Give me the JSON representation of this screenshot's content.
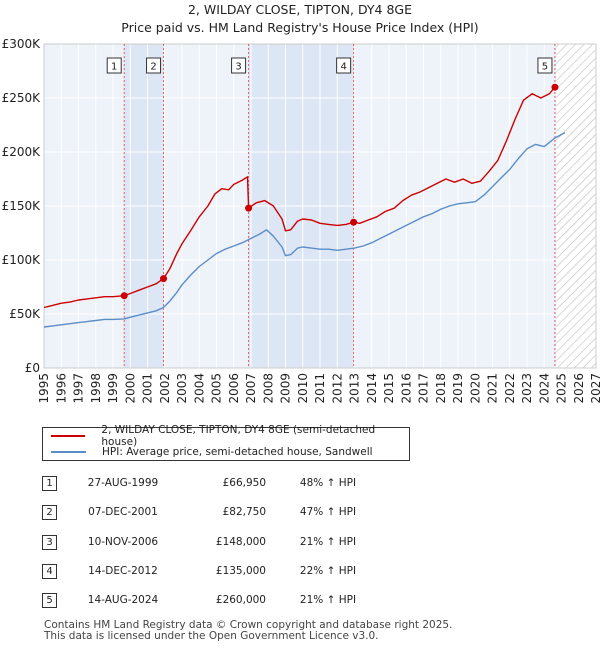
{
  "chart_data": {
    "type": "line",
    "title": "2, WILDAY CLOSE, TIPTON, DY4 8GE",
    "subtitle": "Price paid vs. HM Land Registry's House Price Index (HPI)",
    "xlabel": "",
    "ylabel": "",
    "xlim": [
      1995,
      2027
    ],
    "ylim": [
      0,
      300000
    ],
    "y_ticks": [
      0,
      50000,
      100000,
      150000,
      200000,
      250000,
      300000
    ],
    "y_tick_labels": [
      "£0",
      "£50K",
      "£100K",
      "£150K",
      "£200K",
      "£250K",
      "£300K"
    ],
    "x_ticks": [
      1995,
      1996,
      1997,
      1998,
      1999,
      2000,
      2001,
      2002,
      2003,
      2004,
      2005,
      2006,
      2007,
      2008,
      2009,
      2010,
      2011,
      2012,
      2013,
      2014,
      2015,
      2016,
      2017,
      2018,
      2019,
      2020,
      2021,
      2022,
      2023,
      2024,
      2025,
      2026,
      2027
    ],
    "x_tick_labels": [
      "1995",
      "1996",
      "1997",
      "1998",
      "1999",
      "2000",
      "2001",
      "2002",
      "2003",
      "2004",
      "2005",
      "2006",
      "2007",
      "2008",
      "2009",
      "2010",
      "2011",
      "2012",
      "2013",
      "2014",
      "2015",
      "2016",
      "2017",
      "2018",
      "2019",
      "2020",
      "2021",
      "2022",
      "2023",
      "2024",
      "2025",
      "2026",
      "2027"
    ],
    "grid": true,
    "forecast_start": 2024.7,
    "shaded_periods": [
      [
        1999.65,
        2001.93
      ],
      [
        2006.86,
        2012.95
      ]
    ],
    "series": [
      {
        "name": "2, WILDAY CLOSE, TIPTON, DY4 8GE (semi-detached house)",
        "color": "#cc0000",
        "x": [
          1995.0,
          1995.5,
          1996.0,
          1996.5,
          1997.0,
          1997.5,
          1998.0,
          1998.5,
          1999.0,
          1999.65,
          2000.0,
          2000.5,
          2001.0,
          2001.5,
          2001.93,
          2002.3,
          2002.7,
          2003.0,
          2003.5,
          2004.0,
          2004.5,
          2004.9,
          2005.3,
          2005.7,
          2006.0,
          2006.5,
          2006.8,
          2006.86,
          2007.3,
          2007.8,
          2008.3,
          2008.8,
          2009.0,
          2009.3,
          2009.7,
          2010.0,
          2010.5,
          2011.0,
          2011.5,
          2012.0,
          2012.5,
          2012.95,
          2013.3,
          2013.8,
          2014.3,
          2014.8,
          2015.3,
          2015.8,
          2016.3,
          2016.8,
          2017.3,
          2017.8,
          2018.3,
          2018.8,
          2019.3,
          2019.8,
          2020.3,
          2020.8,
          2021.3,
          2021.8,
          2022.3,
          2022.8,
          2023.3,
          2023.8,
          2024.3,
          2024.62
        ],
        "values": [
          56000,
          58000,
          60000,
          61000,
          63000,
          64000,
          65000,
          66000,
          66000,
          66950,
          69000,
          72000,
          75000,
          78000,
          82750,
          92000,
          106000,
          115000,
          127000,
          140000,
          150000,
          161000,
          166000,
          165000,
          170000,
          174000,
          177000,
          148000,
          153000,
          155000,
          150000,
          138000,
          127000,
          128000,
          136000,
          138000,
          137000,
          134000,
          133000,
          132000,
          133000,
          135000,
          134000,
          137000,
          140000,
          145000,
          148000,
          155000,
          160000,
          163000,
          167000,
          171000,
          175000,
          172000,
          175000,
          171000,
          173000,
          182000,
          192000,
          210000,
          230000,
          248000,
          254000,
          250000,
          254000,
          260000
        ]
      },
      {
        "name": "HPI: Average price, semi-detached house, Sandwell",
        "color": "#5b8dc8",
        "x": [
          1995.0,
          1995.5,
          1996.0,
          1996.5,
          1997.0,
          1997.5,
          1998.0,
          1998.5,
          1999.0,
          1999.65,
          2000.0,
          2000.5,
          2001.0,
          2001.5,
          2001.93,
          2002.3,
          2002.7,
          2003.0,
          2003.5,
          2004.0,
          2004.5,
          2005.0,
          2005.5,
          2006.0,
          2006.5,
          2007.0,
          2007.5,
          2007.9,
          2008.3,
          2008.8,
          2009.0,
          2009.3,
          2009.7,
          2010.0,
          2010.5,
          2011.0,
          2011.5,
          2012.0,
          2012.5,
          2013.0,
          2013.5,
          2014.0,
          2014.5,
          2015.0,
          2015.5,
          2016.0,
          2016.5,
          2017.0,
          2017.5,
          2018.0,
          2018.5,
          2019.0,
          2019.5,
          2020.0,
          2020.5,
          2021.0,
          2021.5,
          2022.0,
          2022.5,
          2023.0,
          2023.5,
          2024.0,
          2024.62,
          2025.2
        ],
        "values": [
          38000,
          39000,
          40000,
          41000,
          42000,
          43000,
          44000,
          45000,
          45000,
          45500,
          47000,
          49000,
          51000,
          53000,
          56000,
          62000,
          70000,
          77000,
          86000,
          94000,
          100000,
          106000,
          110000,
          113000,
          116000,
          120000,
          124000,
          128000,
          122000,
          112000,
          104000,
          105000,
          111000,
          112000,
          111000,
          110000,
          110000,
          109000,
          110000,
          111000,
          113000,
          116000,
          120000,
          124000,
          128000,
          132000,
          136000,
          140000,
          143000,
          147000,
          150000,
          152000,
          153000,
          154000,
          160000,
          168000,
          176000,
          184000,
          194000,
          203000,
          207000,
          205000,
          213000,
          218000
        ]
      }
    ],
    "markers": [
      {
        "label": "1",
        "x": 1999.65,
        "value": 66950
      },
      {
        "label": "2",
        "x": 2001.93,
        "value": 82750
      },
      {
        "label": "3",
        "x": 2006.86,
        "value": 148000
      },
      {
        "label": "4",
        "x": 2012.95,
        "value": 135000
      },
      {
        "label": "5",
        "x": 2024.62,
        "value": 260000
      }
    ]
  },
  "legend": {
    "items": [
      {
        "label": "2, WILDAY CLOSE, TIPTON, DY4 8GE (semi-detached house)",
        "color": "#cc0000"
      },
      {
        "label": "HPI: Average price, semi-detached house, Sandwell",
        "color": "#5b8dc8"
      }
    ]
  },
  "transactions": [
    {
      "num": "1",
      "date": "27-AUG-1999",
      "price": "£66,950",
      "hpi": "48% ↑ HPI"
    },
    {
      "num": "2",
      "date": "07-DEC-2001",
      "price": "£82,750",
      "hpi": "47% ↑ HPI"
    },
    {
      "num": "3",
      "date": "10-NOV-2006",
      "price": "£148,000",
      "hpi": "21% ↑ HPI"
    },
    {
      "num": "4",
      "date": "14-DEC-2012",
      "price": "£135,000",
      "hpi": "22% ↑ HPI"
    },
    {
      "num": "5",
      "date": "14-AUG-2024",
      "price": "£260,000",
      "hpi": "21% ↑ HPI"
    }
  ],
  "footer": {
    "line1": "Contains HM Land Registry data © Crown copyright and database right 2025.",
    "line2": "This data is licensed under the Open Government Licence v3.0."
  }
}
